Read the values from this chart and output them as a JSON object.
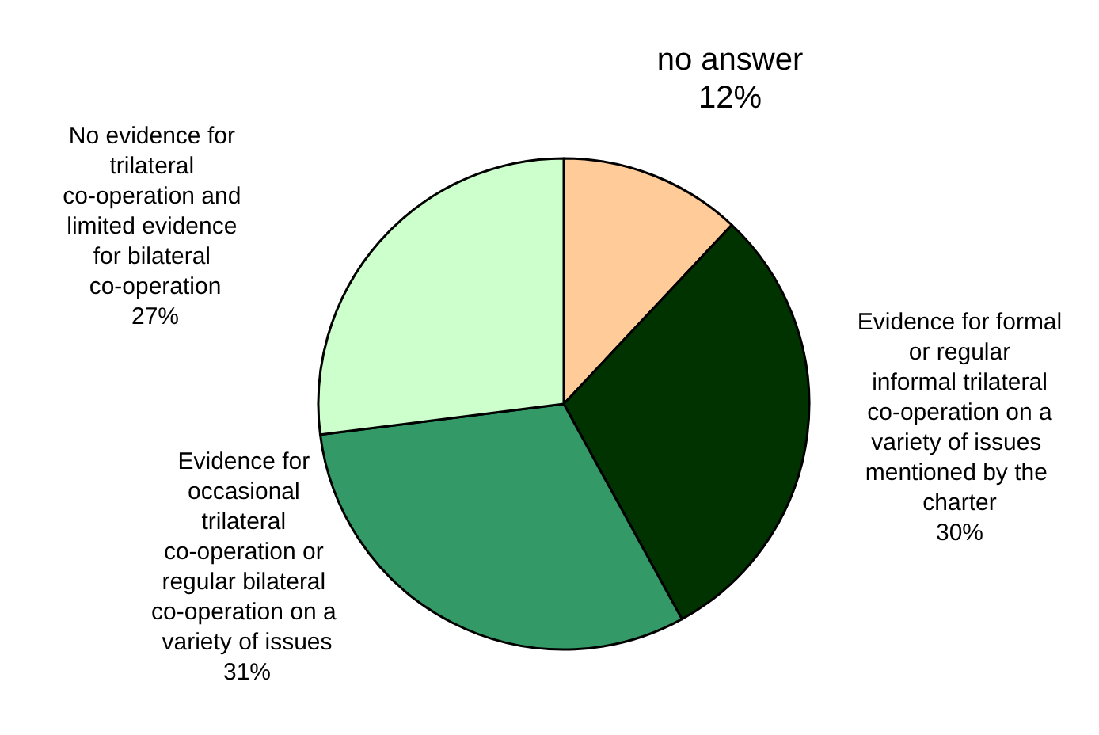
{
  "chart_data": {
    "type": "pie",
    "categories": [
      "no answer",
      "Evidence for formal or regular informal trilateral co-operation on a variety of issues mentioned by the charter",
      "Evidence for occasional trilateral co-operation or regular bilateral co-operation on a variety of issues",
      "No evidence for trilateral co-operation and limited evidence for bilateral co-operation"
    ],
    "values": [
      12,
      30,
      31,
      27
    ],
    "colors": [
      "#ffcc99",
      "#003300",
      "#339966",
      "#ccffcc"
    ],
    "value_labels": [
      "12%",
      "30%",
      "31%",
      "27%"
    ],
    "legend": false
  }
}
